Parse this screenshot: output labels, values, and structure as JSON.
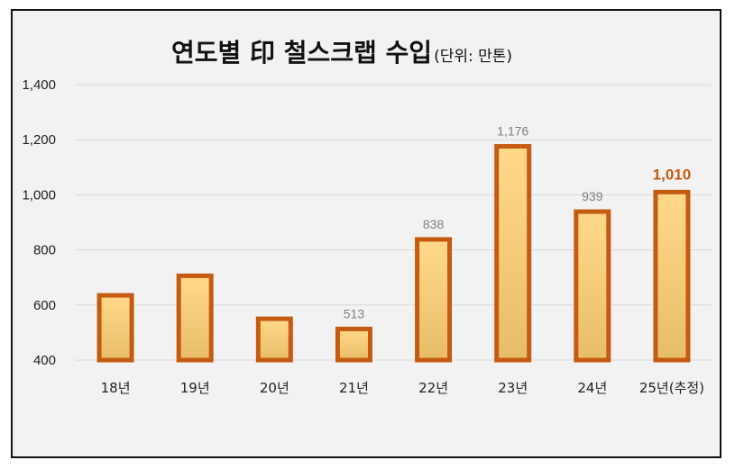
{
  "chart_data": {
    "type": "bar",
    "title": "연도별 印 철스크랩 수입",
    "subtitle": "(단위: 만톤)",
    "categories": [
      "18년",
      "19년",
      "20년",
      "21년",
      "22년",
      "23년",
      "24년",
      "25년(추정)"
    ],
    "values": [
      635,
      706,
      550,
      513,
      838,
      1176,
      939,
      1010
    ],
    "data_labels": [
      "",
      "",
      "",
      "513",
      "838",
      "1,176",
      "939",
      "1,010"
    ],
    "highlight_index": 7,
    "ylim": [
      400,
      1400
    ],
    "yticks": [
      "400",
      "600",
      "800",
      "1,000",
      "1,200",
      "1,400"
    ],
    "ytick_values": [
      400,
      600,
      800,
      1000,
      1200,
      1400
    ],
    "grid": true,
    "legend": "none",
    "colors": {
      "bar_fill_top": "#ffd98a",
      "bar_fill_bottom": "#e8bd68",
      "bar_stroke": "#c55a11",
      "highlight_label": "#c55a11",
      "gridline": "#d9d9d9",
      "background": "#f2f2f2"
    }
  }
}
